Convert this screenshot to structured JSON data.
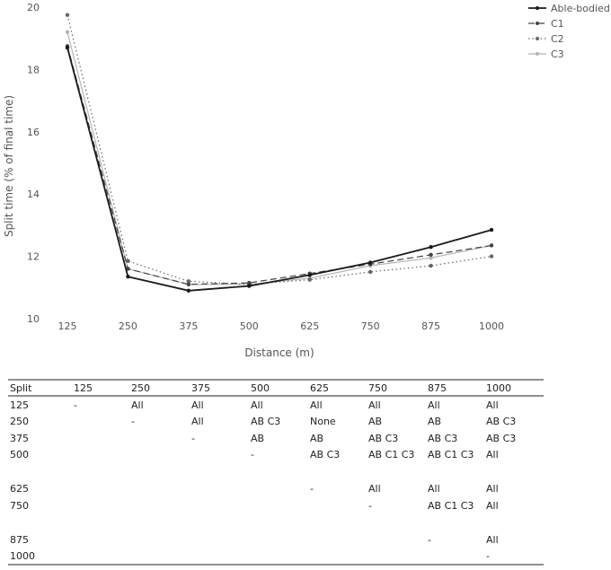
{
  "chart_data": {
    "type": "line",
    "xlabel": "Distance (m)",
    "ylabel": "Split time (% of final time)",
    "ylim": [
      10,
      20
    ],
    "yticks": [
      10,
      12,
      14,
      16,
      18,
      20
    ],
    "categories": [
      "125",
      "250",
      "375",
      "500",
      "625",
      "750",
      "875",
      "1000"
    ],
    "grid": false,
    "legend_position": "top-right",
    "series": [
      {
        "name": "Able-bodied",
        "color": "#1a1a1a",
        "dash": "solid",
        "width": 1.8,
        "values": [
          18.7,
          11.35,
          10.9,
          11.05,
          11.4,
          11.8,
          12.3,
          12.85
        ]
      },
      {
        "name": "C1",
        "color": "#444444",
        "dash": "dashed",
        "width": 1.2,
        "values": [
          18.75,
          11.6,
          11.1,
          11.15,
          11.45,
          11.75,
          12.05,
          12.35
        ]
      },
      {
        "name": "C2",
        "color": "#666666",
        "dash": "dotted",
        "width": 1.2,
        "values": [
          19.75,
          11.85,
          11.2,
          11.1,
          11.25,
          11.5,
          11.7,
          12.0
        ]
      },
      {
        "name": "C3",
        "color": "#b5b5b5",
        "dash": "solid",
        "width": 1.2,
        "values": [
          19.2,
          11.6,
          11.1,
          11.1,
          11.3,
          11.7,
          11.95,
          12.35
        ]
      }
    ]
  },
  "table": {
    "headers": [
      "Split",
      "125",
      "250",
      "375",
      "500",
      "625",
      "750",
      "875",
      "1000"
    ],
    "rows": [
      [
        "125",
        "-",
        "All",
        "All",
        "All",
        "All",
        "All",
        "All",
        "All"
      ],
      [
        "250",
        "",
        "-",
        "All",
        "AB C3",
        "None",
        "AB",
        "AB",
        "AB C3"
      ],
      [
        "375",
        "",
        "",
        "-",
        "AB",
        "AB",
        "AB C3",
        " AB C3",
        "AB C3"
      ],
      [
        "500",
        "",
        "",
        "",
        "-",
        "AB C3",
        "AB C1 C3",
        "AB C1 C3",
        "All"
      ],
      [
        "625",
        "",
        "",
        "",
        "",
        "-",
        "All",
        "All",
        "All"
      ],
      [
        "750",
        "",
        "",
        "",
        "",
        "",
        "-",
        "AB C1 C3",
        "All"
      ],
      [
        "875",
        "",
        "",
        "",
        "",
        "",
        "",
        "-",
        "All"
      ],
      [
        "1000",
        "",
        "",
        "",
        "",
        "",
        "",
        "",
        "-"
      ]
    ]
  }
}
